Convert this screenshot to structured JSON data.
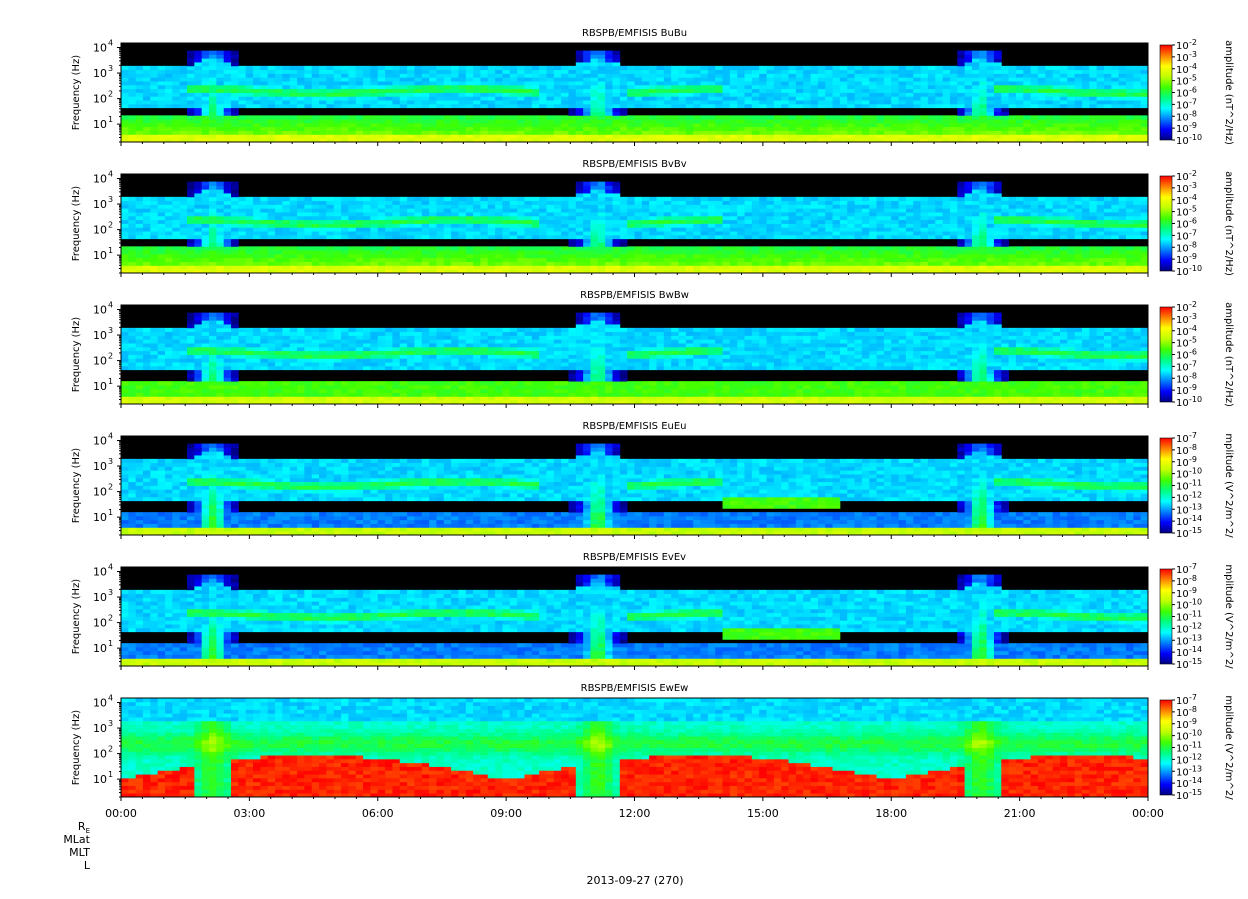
{
  "figure": {
    "date_label": "2013-09-27 (270)",
    "ephemeris_labels": [
      "R",
      "MLat",
      "MLT",
      "L"
    ],
    "ephemeris_subscript": "E",
    "colors": {
      "background": "#000000",
      "colormap": [
        "#000080",
        "#0000ff",
        "#0080ff",
        "#00ffff",
        "#00ff80",
        "#40ff00",
        "#c0ff00",
        "#ffff00",
        "#ff8000",
        "#ff0000"
      ]
    }
  },
  "chart_data": [
    {
      "type": "heatmap",
      "title": "RBSPB/EMFISIS  BuBu",
      "ylabel": "Frequency (Hz)",
      "yscale": "log",
      "ylim": [
        2,
        15000
      ],
      "y_ticks": [
        "10",
        "10",
        "10",
        "10"
      ],
      "y_tick_exponents": [
        "1",
        "2",
        "3",
        "4"
      ],
      "x_ticks": [
        "00:00",
        "03:00",
        "06:00",
        "09:00",
        "12:00",
        "15:00",
        "18:00",
        "21:00",
        "00:00"
      ],
      "xlim": [
        "00:00",
        "24:00"
      ],
      "colorbar_label": "amplitude (nT^2/Hz)",
      "colorbar_ticks": [
        "10",
        "10",
        "10",
        "10",
        "10",
        "10",
        "10",
        "10",
        "10"
      ],
      "colorbar_exponents": [
        "-2",
        "-3",
        "-4",
        "-5",
        "-6",
        "-7",
        "-8",
        "-9",
        "-10"
      ],
      "colorbar_range": [
        1e-10,
        0.01
      ],
      "field": "magnetic"
    },
    {
      "type": "heatmap",
      "title": "RBSPB/EMFISIS  BvBv",
      "ylabel": "Frequency (Hz)",
      "yscale": "log",
      "ylim": [
        2,
        15000
      ],
      "y_ticks": [
        "10",
        "10",
        "10",
        "10"
      ],
      "y_tick_exponents": [
        "1",
        "2",
        "3",
        "4"
      ],
      "xlim": [
        "00:00",
        "24:00"
      ],
      "colorbar_label": "amplitude (nT^2/Hz)",
      "colorbar_ticks": [
        "10",
        "10",
        "10",
        "10",
        "10",
        "10",
        "10",
        "10",
        "10"
      ],
      "colorbar_exponents": [
        "-2",
        "-3",
        "-4",
        "-5",
        "-6",
        "-7",
        "-8",
        "-9",
        "-10"
      ],
      "colorbar_range": [
        1e-10,
        0.01
      ],
      "field": "magnetic"
    },
    {
      "type": "heatmap",
      "title": "RBSPB/EMFISIS  BwBw",
      "ylabel": "Frequency (Hz)",
      "yscale": "log",
      "ylim": [
        2,
        15000
      ],
      "y_ticks": [
        "10",
        "10",
        "10",
        "10"
      ],
      "y_tick_exponents": [
        "1",
        "2",
        "3",
        "4"
      ],
      "xlim": [
        "00:00",
        "24:00"
      ],
      "colorbar_label": "amplitude (nT^2/Hz)",
      "colorbar_ticks": [
        "10",
        "10",
        "10",
        "10",
        "10",
        "10",
        "10",
        "10",
        "10"
      ],
      "colorbar_exponents": [
        "-2",
        "-3",
        "-4",
        "-5",
        "-6",
        "-7",
        "-8",
        "-9",
        "-10"
      ],
      "colorbar_range": [
        1e-10,
        0.01
      ],
      "field": "magnetic-w"
    },
    {
      "type": "heatmap",
      "title": "RBSPB/EMFISIS  EuEu",
      "ylabel": "Frequency (Hz)",
      "yscale": "log",
      "ylim": [
        2,
        15000
      ],
      "y_ticks": [
        "10",
        "10",
        "10",
        "10"
      ],
      "y_tick_exponents": [
        "1",
        "2",
        "3",
        "4"
      ],
      "xlim": [
        "00:00",
        "24:00"
      ],
      "colorbar_label": "mplitude (V^2/m^2/",
      "colorbar_ticks": [
        "10",
        "10",
        "10",
        "10",
        "10",
        "10",
        "10",
        "10",
        "10"
      ],
      "colorbar_exponents": [
        "-7",
        "-8",
        "-9",
        "-10",
        "-11",
        "-12",
        "-13",
        "-14",
        "-15"
      ],
      "colorbar_range": [
        1e-15,
        1e-07
      ],
      "field": "electric"
    },
    {
      "type": "heatmap",
      "title": "RBSPB/EMFISIS  EvEv",
      "ylabel": "Frequency (Hz)",
      "yscale": "log",
      "ylim": [
        2,
        15000
      ],
      "y_ticks": [
        "10",
        "10",
        "10",
        "10"
      ],
      "y_tick_exponents": [
        "1",
        "2",
        "3",
        "4"
      ],
      "xlim": [
        "00:00",
        "24:00"
      ],
      "colorbar_label": "mplitude (V^2/m^2/",
      "colorbar_ticks": [
        "10",
        "10",
        "10",
        "10",
        "10",
        "10",
        "10",
        "10",
        "10"
      ],
      "colorbar_exponents": [
        "-7",
        "-8",
        "-9",
        "-10",
        "-11",
        "-12",
        "-13",
        "-14",
        "-15"
      ],
      "colorbar_range": [
        1e-15,
        1e-07
      ],
      "field": "electric"
    },
    {
      "type": "heatmap",
      "title": "RBSPB/EMFISIS  EwEw",
      "ylabel": "Frequency (Hz)",
      "yscale": "log",
      "ylim": [
        2,
        15000
      ],
      "y_ticks": [
        "10",
        "10",
        "10",
        "10"
      ],
      "y_tick_exponents": [
        "1",
        "2",
        "3",
        "4"
      ],
      "xlim": [
        "00:00",
        "24:00"
      ],
      "colorbar_label": "mplitude (V^2/m^2/",
      "colorbar_ticks": [
        "10",
        "10",
        "10",
        "10",
        "10",
        "10",
        "10",
        "10",
        "10"
      ],
      "colorbar_exponents": [
        "-7",
        "-8",
        "-9",
        "-10",
        "-11",
        "-12",
        "-13",
        "-14",
        "-15"
      ],
      "colorbar_range": [
        1e-15,
        1e-07
      ],
      "field": "electric-w"
    }
  ]
}
